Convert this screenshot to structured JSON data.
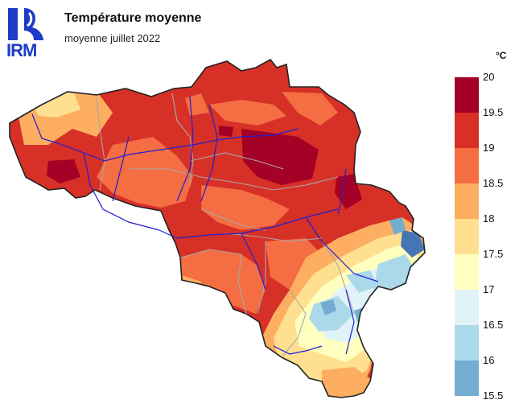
{
  "header": {
    "logo_text": "IRM",
    "title": "Température moyenne",
    "subtitle": "moyenne juillet 2022"
  },
  "legend": {
    "unit": "°C",
    "labels": [
      "20",
      "19.5",
      "19",
      "18.5",
      "18",
      "17.5",
      "17",
      "16.5",
      "16",
      "15.5"
    ],
    "colors": [
      "#a50026",
      "#d73027",
      "#f46d43",
      "#fdae61",
      "#fee090",
      "#ffffbf",
      "#e0f3f8",
      "#abd9e9",
      "#74add1",
      "#4575b4",
      "#313695"
    ]
  }
}
